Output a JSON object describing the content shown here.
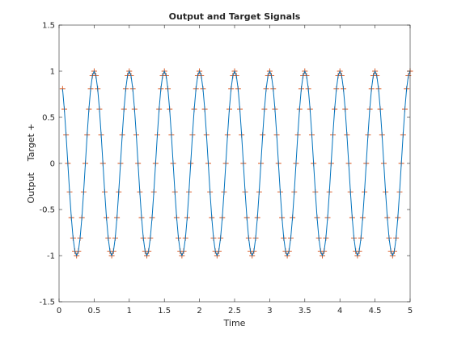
{
  "chart_data": {
    "type": "line",
    "title": "Output and Target Signals",
    "xlabel": "Time",
    "ylabel": "Output    Target +",
    "xlim": [
      0,
      5
    ],
    "ylim": [
      -1.5,
      1.5
    ],
    "grid": false,
    "box": true,
    "x_ticks": [
      "0",
      "0.5",
      "1",
      "1.5",
      "2",
      "2.5",
      "3",
      "3.5",
      "4",
      "4.5",
      "5"
    ],
    "y_ticks": [
      "-1.5",
      "-1",
      "-0.5",
      "0",
      "0.5",
      "1",
      "1.5"
    ],
    "signal": {
      "function": "cos(2*pi*f*t)",
      "frequency": 2,
      "t_start": 0.05,
      "t_end": 5,
      "sample_step": 0.025
    },
    "series": [
      {
        "role": "output",
        "style": "line",
        "color": "#0072BD"
      },
      {
        "role": "target",
        "style": "plus-markers",
        "color": "#D95319"
      }
    ]
  }
}
